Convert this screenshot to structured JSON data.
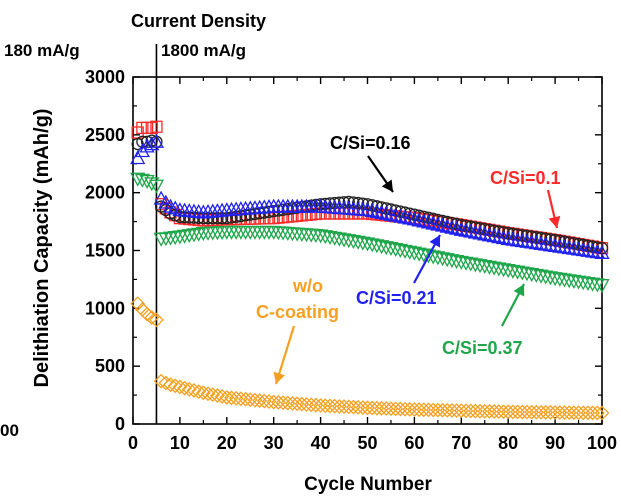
{
  "chart_data": {
    "type": "scatter",
    "title": "Current Density",
    "region_labels": [
      "180 mA/g",
      "1800 mA/g"
    ],
    "xlabel": "Cycle Number",
    "ylabel": "Delithiation Capacity (mAh/g)",
    "xlim": [
      0,
      100
    ],
    "ylim": [
      0,
      3000
    ],
    "xticks": [
      0,
      10,
      20,
      30,
      40,
      50,
      60,
      70,
      80,
      90,
      100
    ],
    "yticks": [
      0,
      500,
      1000,
      1500,
      2000,
      2500,
      3000
    ],
    "rate_switch_cycle": 5,
    "stray_left_label": "00",
    "series": [
      {
        "name": "C/Si=0.1",
        "color": "#ff2a2a",
        "marker": "square",
        "x": [
          1,
          2,
          3,
          4,
          5,
          6,
          8,
          10,
          15,
          20,
          30,
          40,
          50,
          60,
          70,
          80,
          90,
          100
        ],
        "y": [
          2520,
          2560,
          2560,
          2560,
          2570,
          1900,
          1830,
          1780,
          1760,
          1770,
          1780,
          1820,
          1820,
          1780,
          1720,
          1650,
          1590,
          1520
        ]
      },
      {
        "name": "C/Si=0.16",
        "color": "#222222",
        "marker": "circle",
        "x": [
          1,
          2,
          3,
          4,
          5,
          6,
          8,
          10,
          15,
          20,
          30,
          40,
          46,
          50,
          60,
          70,
          80,
          90,
          100
        ],
        "y": [
          2420,
          2440,
          2440,
          2450,
          2440,
          1880,
          1820,
          1790,
          1780,
          1780,
          1840,
          1900,
          1920,
          1900,
          1810,
          1720,
          1650,
          1590,
          1520
        ]
      },
      {
        "name": "C/Si=0.21",
        "color": "#2222ee",
        "marker": "triangle-up",
        "x": [
          1,
          2,
          3,
          4,
          5,
          6,
          8,
          10,
          15,
          20,
          30,
          40,
          50,
          60,
          70,
          80,
          90,
          100
        ],
        "y": [
          2300,
          2360,
          2400,
          2420,
          2440,
          1950,
          1880,
          1850,
          1830,
          1850,
          1880,
          1880,
          1850,
          1770,
          1680,
          1600,
          1540,
          1480
        ]
      },
      {
        "name": "C/Si=0.37",
        "color": "#1fa64a",
        "marker": "triangle-down",
        "x": [
          1,
          2,
          3,
          4,
          5,
          6,
          8,
          10,
          15,
          20,
          30,
          40,
          50,
          60,
          70,
          80,
          90,
          100
        ],
        "y": [
          2120,
          2110,
          2100,
          2080,
          2060,
          1600,
          1610,
          1620,
          1650,
          1660,
          1660,
          1630,
          1560,
          1480,
          1400,
          1330,
          1260,
          1200
        ]
      },
      {
        "name": "w/o C-coating",
        "color": "#f5a020",
        "marker": "diamond",
        "x": [
          1,
          2,
          3,
          4,
          5,
          6,
          8,
          10,
          15,
          20,
          30,
          40,
          50,
          60,
          70,
          80,
          90,
          100
        ],
        "y": [
          1040,
          990,
          950,
          920,
          900,
          370,
          340,
          320,
          270,
          230,
          190,
          160,
          140,
          125,
          115,
          105,
          100,
          95
        ]
      }
    ],
    "annotations": [
      {
        "text": "C/Si=0.16",
        "color": "#000000"
      },
      {
        "text": "C/Si=0.1",
        "color": "#ff2a2a"
      },
      {
        "text": "C/Si=0.21",
        "color": "#2222ee"
      },
      {
        "text": "C/Si=0.37",
        "color": "#1fa64a"
      },
      {
        "text": "w/o",
        "color": "#f5a020"
      },
      {
        "text": "C-coating",
        "color": "#f5a020"
      }
    ]
  }
}
